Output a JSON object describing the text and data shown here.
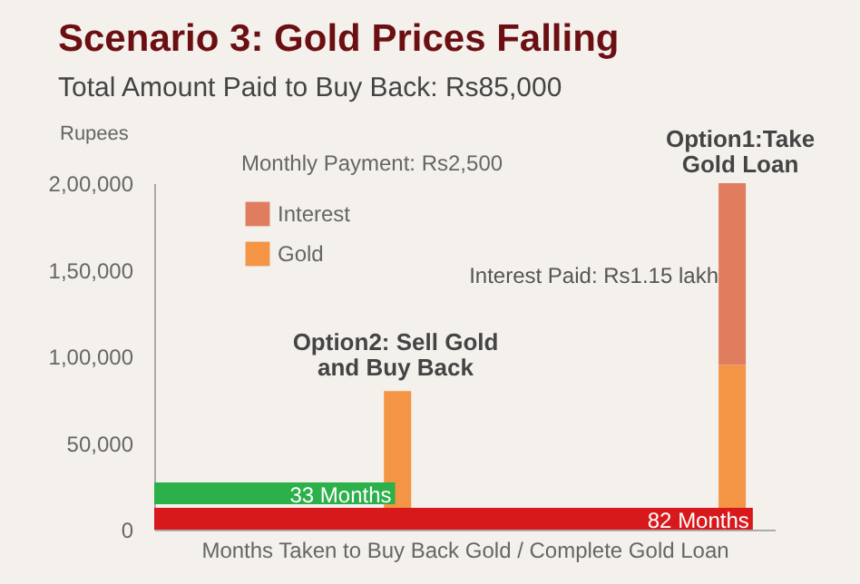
{
  "chart_data": [
    {
      "type": "bar",
      "title": "Scenario 3: Gold Prices Falling",
      "subtitle": "Total Amount Paid to Buy Back: Rs85,000",
      "ylabel": "Rupees",
      "xlabel": "Months Taken to Buy Back Gold / Complete Gold Loan",
      "categories": [
        null,
        null
      ],
      "ylim": [
        0,
        200000
      ],
      "yticks": [
        0,
        {
          "value": 50000,
          "label": "50,000"
        },
        {
          "value": 100000,
          "label": "1,00,000"
        },
        {
          "value": 150000,
          "label": "1,50,000"
        },
        {
          "value": 200000,
          "label": "2,00,000"
        }
      ],
      "tick_labels": "y",
      "stacked": true,
      "legend": "top left",
      "series": [
        {
          "name": "Gold",
          "color": "#f39545",
          "values": [
            80000,
            95000
          ]
        },
        {
          "name": "Interest",
          "color": "#df7d5e",
          "values": [
            null,
            105000
          ]
        }
      ],
      "annotations": [
        "Monthly Payment: Rs2,500",
        "Option2: Sell Gold\nand Buy Back",
        "Option1:Take\nGold Loan",
        "Interest Paid: Rs1.15 lakh"
      ]
    },
    {
      "type": "bar",
      "orientation": "horizontal",
      "categories": [
        null,
        null
      ],
      "xlim": [
        0,
        85
      ],
      "tick_labels": false,
      "values": [
        33,
        82
      ],
      "colors": [
        "#2bb04a",
        "#d7191c"
      ],
      "value_labels": [
        "33 Months",
        "82 Months"
      ]
    }
  ]
}
